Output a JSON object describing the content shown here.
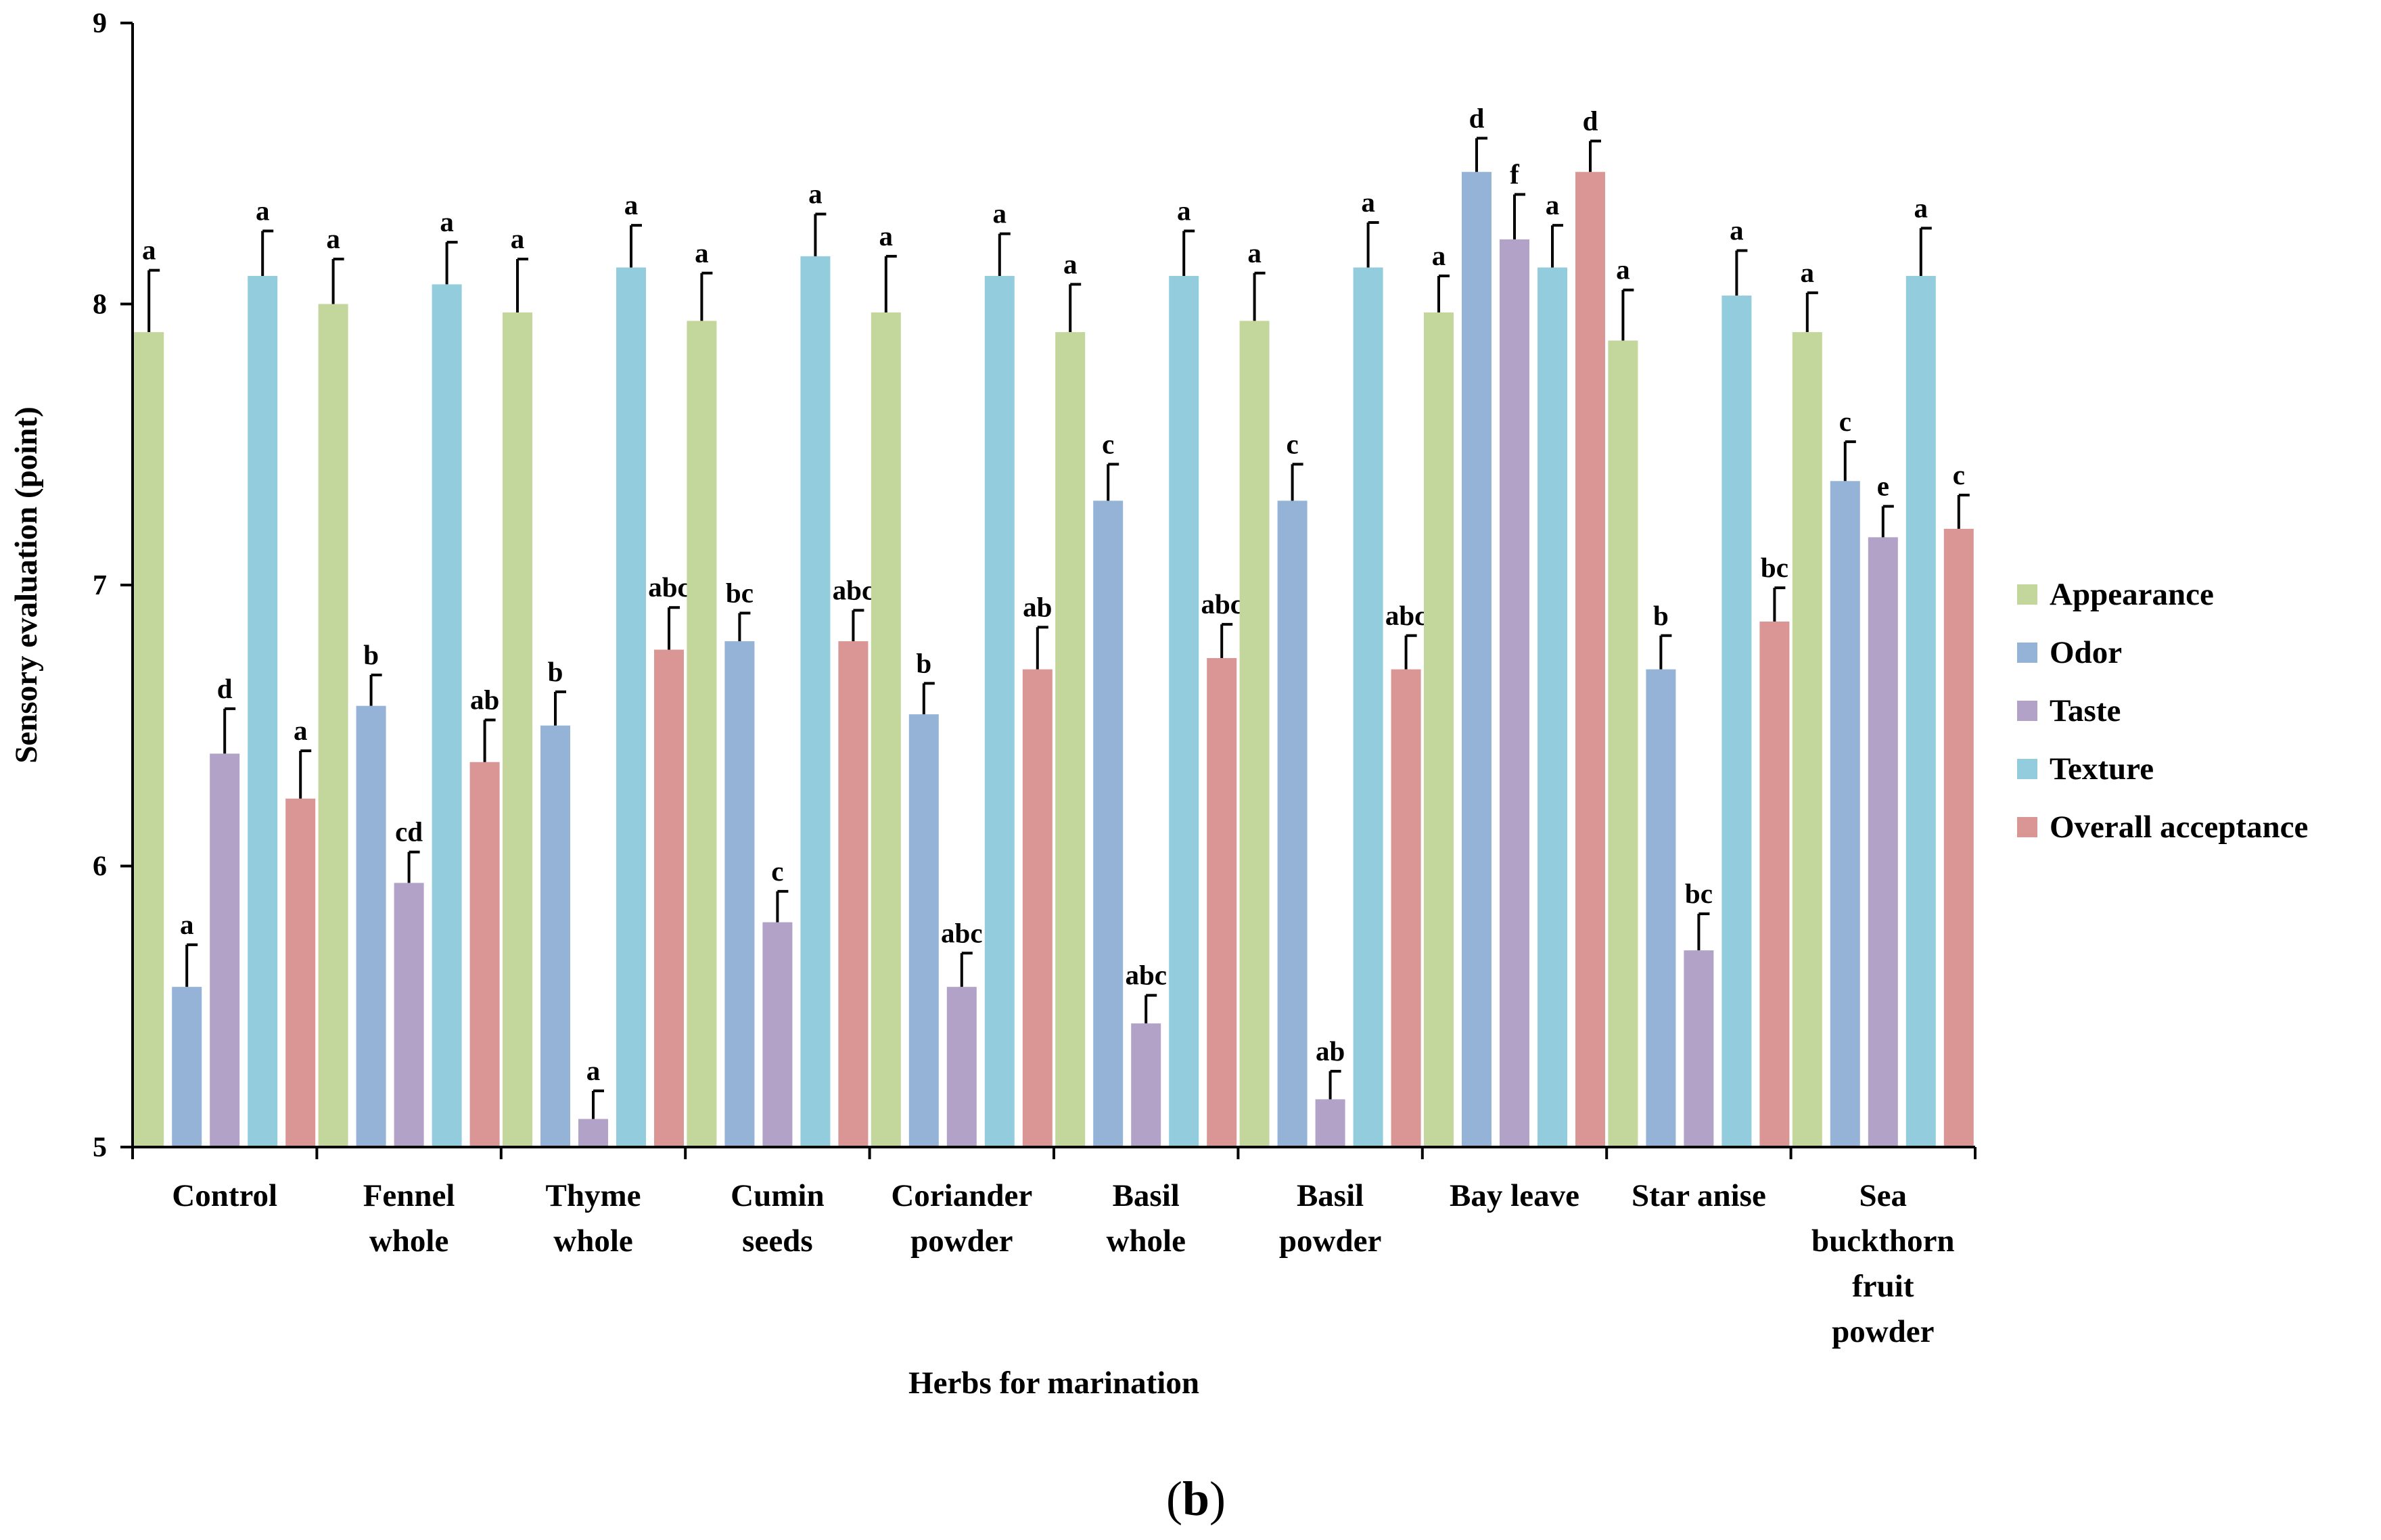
{
  "chart_data": {
    "type": "bar",
    "xlabel": "Herbs for marination",
    "ylabel": "Sensory evaluation (point)",
    "ylim": [
      5,
      9
    ],
    "yticks": [
      5,
      6,
      7,
      8,
      9
    ],
    "panel_label": {
      "open": "(",
      "letter": "b",
      "close": ")"
    },
    "categories": [
      [
        "Control"
      ],
      [
        "Fennel",
        "whole"
      ],
      [
        "Thyme",
        "whole"
      ],
      [
        "Cumin",
        "seeds"
      ],
      [
        "Coriander",
        "powder"
      ],
      [
        "Basil",
        "whole"
      ],
      [
        "Basil",
        "powder"
      ],
      [
        "Bay leave"
      ],
      [
        "Star anise"
      ],
      [
        "Sea",
        "buckthorn",
        "fruit",
        "powder"
      ]
    ],
    "series": [
      {
        "name": "Appearance",
        "color": "#c3d69b",
        "values": [
          7.9,
          8.0,
          7.97,
          7.94,
          7.97,
          7.9,
          7.94,
          7.97,
          7.87,
          7.9
        ],
        "errors": [
          0.22,
          0.16,
          0.19,
          0.17,
          0.2,
          0.17,
          0.17,
          0.13,
          0.18,
          0.14
        ],
        "letters": [
          "a",
          "a",
          "a",
          "a",
          "a",
          "a",
          "a",
          "a",
          "a",
          "a"
        ]
      },
      {
        "name": "Odor",
        "color": "#95b3d7",
        "values": [
          5.57,
          6.57,
          6.5,
          6.8,
          6.54,
          7.3,
          7.3,
          8.47,
          6.7,
          7.37
        ],
        "errors": [
          0.15,
          0.11,
          0.12,
          0.1,
          0.11,
          0.13,
          0.13,
          0.12,
          0.12,
          0.14
        ],
        "letters": [
          "a",
          "b",
          "b",
          "bc",
          "b",
          "c",
          "c",
          "d",
          "b",
          "c"
        ]
      },
      {
        "name": "Taste",
        "color": "#b3a2c7",
        "values": [
          6.4,
          5.94,
          5.1,
          5.8,
          5.57,
          5.44,
          5.17,
          8.23,
          5.7,
          7.17
        ],
        "errors": [
          0.16,
          0.11,
          0.1,
          0.11,
          0.12,
          0.1,
          0.1,
          0.16,
          0.13,
          0.11
        ],
        "letters": [
          "d",
          "cd",
          "a",
          "c",
          "abc",
          "abc",
          "ab",
          "f",
          "bc",
          "e"
        ]
      },
      {
        "name": "Texture",
        "color": "#93cddd",
        "values": [
          8.1,
          8.07,
          8.13,
          8.17,
          8.1,
          8.1,
          8.13,
          8.13,
          8.03,
          8.1
        ],
        "errors": [
          0.16,
          0.15,
          0.15,
          0.15,
          0.15,
          0.16,
          0.16,
          0.15,
          0.16,
          0.17
        ],
        "letters": [
          "a",
          "a",
          "a",
          "a",
          "a",
          "a",
          "a",
          "a",
          "a",
          "a"
        ]
      },
      {
        "name": "Overall acceptance",
        "color": "#d99694",
        "values": [
          6.24,
          6.37,
          6.77,
          6.8,
          6.7,
          6.74,
          6.7,
          8.47,
          6.87,
          7.2
        ],
        "errors": [
          0.17,
          0.15,
          0.15,
          0.11,
          0.15,
          0.12,
          0.12,
          0.11,
          0.12,
          0.12
        ],
        "letters": [
          "a",
          "ab",
          "abc",
          "abc",
          "ab",
          "abc",
          "abc",
          "d",
          "bc",
          "c"
        ]
      }
    ],
    "legend": [
      "Appearance",
      "Odor",
      "Taste",
      "Texture",
      "Overall acceptance"
    ]
  }
}
